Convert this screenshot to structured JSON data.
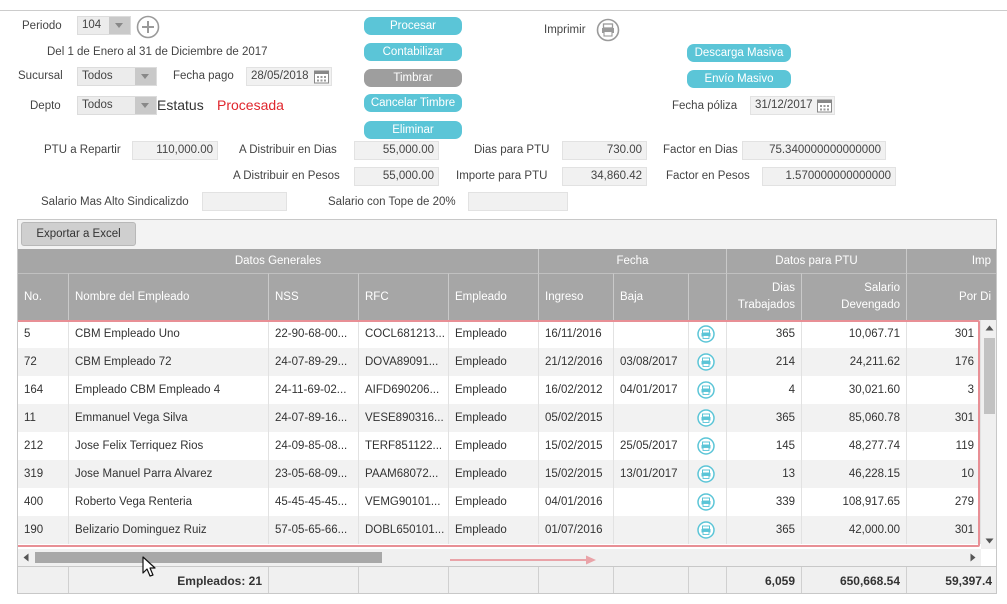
{
  "filters": {
    "periodo_label": "Periodo",
    "periodo_value": "104",
    "periodo_range": "Del 1 de Enero al 31 de Diciembre de 2017",
    "sucursal_label": "Sucursal",
    "sucursal_value": "Todos",
    "fecha_pago_label": "Fecha pago",
    "fecha_pago_value": "28/05/2018",
    "depto_label": "Depto",
    "depto_value": "Todos",
    "estatus_label": "Estatus",
    "estatus_value": "Procesada",
    "imprimir_label": "Imprimir",
    "fecha_poliza_label": "Fecha póliza",
    "fecha_poliza_value": "31/12/2017"
  },
  "actions": {
    "procesar": "Procesar",
    "contabilizar": "Contabilizar",
    "timbrar": "Timbrar",
    "cancelar_timbre": "Cancelar Timbre",
    "eliminar": "Eliminar",
    "descarga_masiva": "Descarga Masiva",
    "envio_masivo": "Envío Masivo"
  },
  "summary": {
    "ptu_repartir_label": "PTU a Repartir",
    "ptu_repartir_value": "110,000.00",
    "dist_dias_label": "A Distribuir en Dias",
    "dist_dias_value": "55,000.00",
    "dias_ptu_label": "Dias para PTU",
    "dias_ptu_value": "730.00",
    "factor_dias_label": "Factor en Dias",
    "factor_dias_value": "75.340000000000000",
    "dist_pesos_label": "A Distribuir en Pesos",
    "dist_pesos_value": "55,000.00",
    "importe_ptu_label": "Importe para PTU",
    "importe_ptu_value": "34,860.42",
    "factor_pesos_label": "Factor en Pesos",
    "factor_pesos_value": "1.570000000000000",
    "salario_alto_label": "Salario Mas Alto Sindicalizdo",
    "salario_alto_value": "",
    "salario_tope_label": "Salario con Tope de 20%",
    "salario_tope_value": ""
  },
  "grid": {
    "export_label": "Exportar a Excel",
    "groups": [
      "Datos Generales",
      "Fecha",
      "Datos para PTU",
      "Imp"
    ],
    "columns": {
      "no": "No.",
      "nombre": "Nombre del Empleado",
      "nss": "NSS",
      "rfc": "RFC",
      "empleado": "Empleado",
      "ingreso": "Ingreso",
      "baja": "Baja",
      "dias_1": "Dias",
      "dias_2": "Trabajados",
      "salario_1": "Salario",
      "salario_2": "Devengado",
      "pordia": "Por Di"
    },
    "rows": [
      {
        "no": "5",
        "nombre": "CBM Empleado Uno",
        "nss": "22-90-68-00...",
        "rfc": "COCL681213...",
        "empleado": "Empleado",
        "ingreso": "16/11/2016",
        "baja": "",
        "dias": "365",
        "salario": "10,067.71",
        "pordia": "301"
      },
      {
        "no": "72",
        "nombre": "CBM Empleado 72",
        "nss": "24-07-89-29...",
        "rfc": "DOVA89091...",
        "empleado": "Empleado",
        "ingreso": "21/12/2016",
        "baja": "03/08/2017",
        "dias": "214",
        "salario": "24,211.62",
        "pordia": "176"
      },
      {
        "no": "164",
        "nombre": "Empleado CBM Empleado 4",
        "nss": "24-11-69-02...",
        "rfc": "AIFD690206...",
        "empleado": "Empleado",
        "ingreso": "16/02/2012",
        "baja": "04/01/2017",
        "dias": "4",
        "salario": "30,021.60",
        "pordia": "3"
      },
      {
        "no": "11",
        "nombre": "Emmanuel Vega Silva",
        "nss": "24-07-89-16...",
        "rfc": "VESE890316...",
        "empleado": "Empleado",
        "ingreso": "05/02/2015",
        "baja": "",
        "dias": "365",
        "salario": "85,060.78",
        "pordia": "301"
      },
      {
        "no": "212",
        "nombre": "Jose Felix Terriquez Rios",
        "nss": "24-09-85-08...",
        "rfc": "TERF851122...",
        "empleado": "Empleado",
        "ingreso": "15/02/2015",
        "baja": "25/05/2017",
        "dias": "145",
        "salario": "48,277.74",
        "pordia": "119"
      },
      {
        "no": "319",
        "nombre": "Jose Manuel Parra Alvarez",
        "nss": "23-05-68-09...",
        "rfc": "PAAM68072...",
        "empleado": "Empleado",
        "ingreso": "15/02/2015",
        "baja": "13/01/2017",
        "dias": "13",
        "salario": "46,228.15",
        "pordia": "10"
      },
      {
        "no": "400",
        "nombre": "Roberto Vega Renteria",
        "nss": "45-45-45-45...",
        "rfc": "VEMG90101...",
        "empleado": "Empleado",
        "ingreso": "04/01/2016",
        "baja": "",
        "dias": "339",
        "salario": "108,917.65",
        "pordia": "279"
      },
      {
        "no": "190",
        "nombre": "Belizario Dominguez Ruiz",
        "nss": "57-05-65-66...",
        "rfc": "DOBL650101...",
        "empleado": "Empleado",
        "ingreso": "01/07/2016",
        "baja": "",
        "dias": "365",
        "salario": "42,000.00",
        "pordia": "301"
      }
    ],
    "footer": {
      "empleados": "Empleados: 21",
      "dias_total": "6,059",
      "salario_total": "650,668.54",
      "pordia_total": "59,397.4"
    }
  }
}
